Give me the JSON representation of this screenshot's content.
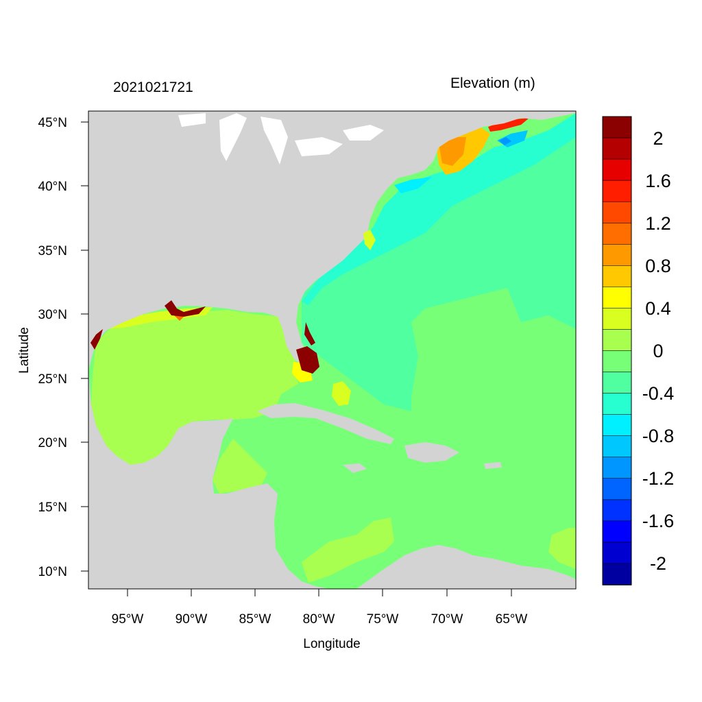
{
  "title_left": "2021021721",
  "title_right": "Elevation (m)",
  "axes": {
    "xlabel": "Longitude",
    "ylabel": "Latitude",
    "x_ticks": [
      "95°W",
      "90°W",
      "85°W",
      "80°W",
      "75°W",
      "70°W",
      "65°W"
    ],
    "y_ticks": [
      "45°N",
      "40°N",
      "35°N",
      "30°N",
      "25°N",
      "20°N",
      "15°N",
      "10°N"
    ]
  },
  "colorbar": {
    "labels": [
      "2",
      "1.6",
      "1.2",
      "0.8",
      "0.4",
      "0",
      "-0.4",
      "-0.8",
      "-1.2",
      "-1.6",
      "-2"
    ],
    "colors": [
      "#8b0000",
      "#b40000",
      "#e60000",
      "#ff1e00",
      "#ff4800",
      "#ff6e00",
      "#ff9900",
      "#ffc800",
      "#ffff00",
      "#d8ff20",
      "#a8ff50",
      "#78ff78",
      "#50ffa0",
      "#28ffd0",
      "#00f0ff",
      "#00c8ff",
      "#0096ff",
      "#0064ff",
      "#0032ff",
      "#0000ff",
      "#0000d0",
      "#0000a0"
    ]
  },
  "colors": {
    "land": "#d3d3d3",
    "ocean_base": "#78ff78",
    "gulf": "#a8ff50",
    "atlantic_west": "#50ffa0",
    "coastal_cyan": "#28ffd0",
    "surge_high": "#8b0000"
  }
}
